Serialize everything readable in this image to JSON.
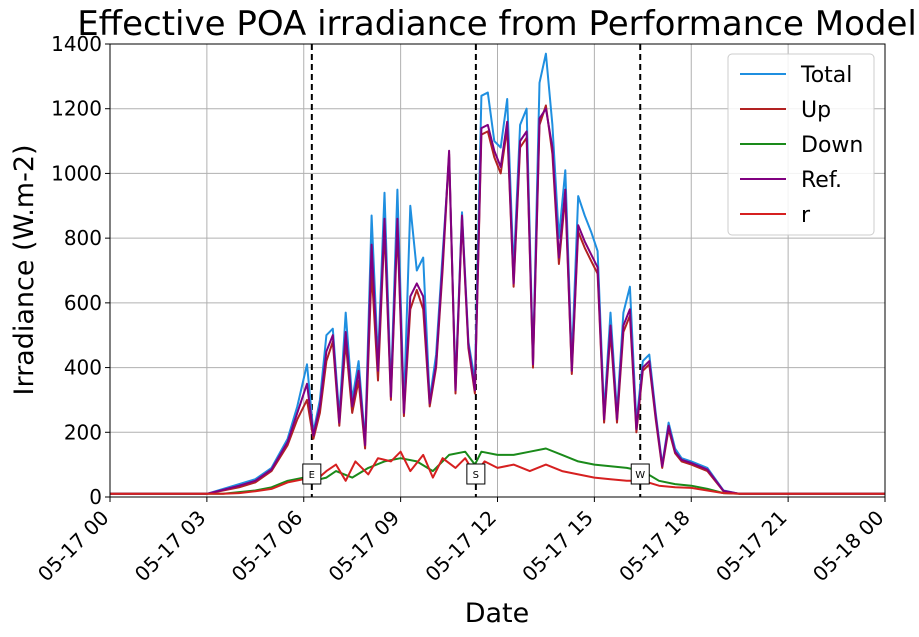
{
  "chart_data": {
    "type": "line",
    "title": "Effective POA irradiance from Performance Model",
    "xlabel": "Date",
    "ylabel": "Irradiance (W.m-2)",
    "xlim_hours": [
      0,
      24
    ],
    "ylim": [
      0,
      1400
    ],
    "grid": true,
    "legend_position": "top-right",
    "x_tick_labels": [
      "05-17 00",
      "05-17 03",
      "05-17 06",
      "05-17 09",
      "05-17 12",
      "05-17 15",
      "05-17 18",
      "05-17 21",
      "05-18 00"
    ],
    "y_ticks": [
      0,
      200,
      400,
      600,
      800,
      1000,
      1200,
      1400
    ],
    "markers": [
      {
        "label": "E",
        "hour": 6.25
      },
      {
        "label": "S",
        "hour": 11.33
      },
      {
        "label": "W",
        "hour": 16.42
      }
    ],
    "series": [
      {
        "name": "Total",
        "color": "#1f8fe0",
        "points": [
          [
            0,
            10
          ],
          [
            3,
            10
          ],
          [
            3.5,
            25
          ],
          [
            4,
            40
          ],
          [
            4.5,
            55
          ],
          [
            5,
            90
          ],
          [
            5.5,
            180
          ],
          [
            5.8,
            280
          ],
          [
            6.1,
            410
          ],
          [
            6.3,
            200
          ],
          [
            6.5,
            300
          ],
          [
            6.7,
            500
          ],
          [
            6.9,
            520
          ],
          [
            7.1,
            250
          ],
          [
            7.3,
            570
          ],
          [
            7.5,
            300
          ],
          [
            7.7,
            420
          ],
          [
            7.9,
            170
          ],
          [
            8.1,
            870
          ],
          [
            8.3,
            420
          ],
          [
            8.5,
            940
          ],
          [
            8.7,
            330
          ],
          [
            8.9,
            950
          ],
          [
            9.1,
            280
          ],
          [
            9.3,
            900
          ],
          [
            9.5,
            700
          ],
          [
            9.7,
            740
          ],
          [
            9.9,
            300
          ],
          [
            10.1,
            440
          ],
          [
            10.3,
            750
          ],
          [
            10.5,
            1050
          ],
          [
            10.7,
            350
          ],
          [
            10.9,
            880
          ],
          [
            11.1,
            480
          ],
          [
            11.3,
            360
          ],
          [
            11.5,
            1240
          ],
          [
            11.7,
            1250
          ],
          [
            11.9,
            1100
          ],
          [
            12.1,
            1080
          ],
          [
            12.3,
            1230
          ],
          [
            12.5,
            700
          ],
          [
            12.7,
            1150
          ],
          [
            12.9,
            1200
          ],
          [
            13.1,
            420
          ],
          [
            13.3,
            1280
          ],
          [
            13.5,
            1370
          ],
          [
            13.7,
            1150
          ],
          [
            13.9,
            800
          ],
          [
            14.1,
            1010
          ],
          [
            14.3,
            420
          ],
          [
            14.5,
            930
          ],
          [
            14.7,
            870
          ],
          [
            14.9,
            820
          ],
          [
            15.1,
            760
          ],
          [
            15.3,
            260
          ],
          [
            15.5,
            570
          ],
          [
            15.7,
            260
          ],
          [
            15.9,
            570
          ],
          [
            16.1,
            650
          ],
          [
            16.3,
            230
          ],
          [
            16.5,
            420
          ],
          [
            16.7,
            440
          ],
          [
            16.9,
            260
          ],
          [
            17.1,
            100
          ],
          [
            17.3,
            230
          ],
          [
            17.5,
            150
          ],
          [
            17.7,
            120
          ],
          [
            18,
            110
          ],
          [
            18.5,
            90
          ],
          [
            19,
            20
          ],
          [
            19.5,
            10
          ],
          [
            24,
            10
          ]
        ]
      },
      {
        "name": "Up",
        "color": "#b22222",
        "points": [
          [
            0,
            10
          ],
          [
            3,
            10
          ],
          [
            3.5,
            20
          ],
          [
            4,
            30
          ],
          [
            4.5,
            45
          ],
          [
            5,
            80
          ],
          [
            5.5,
            160
          ],
          [
            5.8,
            240
          ],
          [
            6.1,
            300
          ],
          [
            6.3,
            180
          ],
          [
            6.5,
            260
          ],
          [
            6.7,
            420
          ],
          [
            6.9,
            480
          ],
          [
            7.1,
            220
          ],
          [
            7.3,
            480
          ],
          [
            7.5,
            260
          ],
          [
            7.7,
            360
          ],
          [
            7.9,
            150
          ],
          [
            8.1,
            700
          ],
          [
            8.3,
            360
          ],
          [
            8.5,
            830
          ],
          [
            8.7,
            300
          ],
          [
            8.9,
            830
          ],
          [
            9.1,
            250
          ],
          [
            9.3,
            580
          ],
          [
            9.5,
            640
          ],
          [
            9.7,
            580
          ],
          [
            9.9,
            280
          ],
          [
            10.1,
            400
          ],
          [
            10.3,
            700
          ],
          [
            10.5,
            1060
          ],
          [
            10.7,
            320
          ],
          [
            10.9,
            860
          ],
          [
            11.1,
            460
          ],
          [
            11.3,
            320
          ],
          [
            11.5,
            1120
          ],
          [
            11.7,
            1130
          ],
          [
            11.9,
            1050
          ],
          [
            12.1,
            1000
          ],
          [
            12.3,
            1140
          ],
          [
            12.5,
            650
          ],
          [
            12.7,
            1080
          ],
          [
            12.9,
            1110
          ],
          [
            13.1,
            400
          ],
          [
            13.3,
            1150
          ],
          [
            13.5,
            1210
          ],
          [
            13.7,
            1060
          ],
          [
            13.9,
            720
          ],
          [
            14.1,
            930
          ],
          [
            14.3,
            380
          ],
          [
            14.5,
            820
          ],
          [
            14.7,
            770
          ],
          [
            14.9,
            730
          ],
          [
            15.1,
            690
          ],
          [
            15.3,
            230
          ],
          [
            15.5,
            510
          ],
          [
            15.7,
            230
          ],
          [
            15.9,
            510
          ],
          [
            16.1,
            560
          ],
          [
            16.3,
            200
          ],
          [
            16.5,
            390
          ],
          [
            16.7,
            410
          ],
          [
            16.9,
            240
          ],
          [
            17.1,
            90
          ],
          [
            17.3,
            210
          ],
          [
            17.5,
            135
          ],
          [
            17.7,
            110
          ],
          [
            18,
            100
          ],
          [
            18.5,
            80
          ],
          [
            19,
            18
          ],
          [
            19.5,
            10
          ],
          [
            24,
            10
          ]
        ]
      },
      {
        "name": "Down",
        "color": "#1a8a1a",
        "points": [
          [
            0,
            10
          ],
          [
            3.5,
            10
          ],
          [
            4,
            15
          ],
          [
            4.5,
            20
          ],
          [
            5,
            30
          ],
          [
            5.5,
            50
          ],
          [
            6,
            60
          ],
          [
            6.3,
            50
          ],
          [
            6.7,
            60
          ],
          [
            7,
            80
          ],
          [
            7.5,
            60
          ],
          [
            8,
            90
          ],
          [
            8.5,
            110
          ],
          [
            9,
            120
          ],
          [
            9.5,
            110
          ],
          [
            10,
            80
          ],
          [
            10.5,
            130
          ],
          [
            11,
            140
          ],
          [
            11.3,
            100
          ],
          [
            11.5,
            140
          ],
          [
            12,
            130
          ],
          [
            12.5,
            130
          ],
          [
            13,
            140
          ],
          [
            13.5,
            150
          ],
          [
            14,
            130
          ],
          [
            14.5,
            110
          ],
          [
            15,
            100
          ],
          [
            15.5,
            95
          ],
          [
            16,
            90
          ],
          [
            16.5,
            80
          ],
          [
            17,
            50
          ],
          [
            17.5,
            40
          ],
          [
            18,
            35
          ],
          [
            18.5,
            25
          ],
          [
            19,
            12
          ],
          [
            19.5,
            10
          ],
          [
            24,
            10
          ]
        ]
      },
      {
        "name": "Ref.",
        "color": "#800080",
        "points": [
          [
            0,
            10
          ],
          [
            3,
            10
          ],
          [
            3.5,
            22
          ],
          [
            4,
            35
          ],
          [
            4.5,
            50
          ],
          [
            5,
            85
          ],
          [
            5.5,
            170
          ],
          [
            5.8,
            260
          ],
          [
            6.1,
            350
          ],
          [
            6.3,
            190
          ],
          [
            6.5,
            280
          ],
          [
            6.7,
            450
          ],
          [
            6.9,
            500
          ],
          [
            7.1,
            230
          ],
          [
            7.3,
            510
          ],
          [
            7.5,
            280
          ],
          [
            7.7,
            390
          ],
          [
            7.9,
            160
          ],
          [
            8.1,
            780
          ],
          [
            8.3,
            390
          ],
          [
            8.5,
            860
          ],
          [
            8.7,
            310
          ],
          [
            8.9,
            860
          ],
          [
            9.1,
            260
          ],
          [
            9.3,
            620
          ],
          [
            9.5,
            660
          ],
          [
            9.7,
            620
          ],
          [
            9.9,
            290
          ],
          [
            10.1,
            410
          ],
          [
            10.3,
            720
          ],
          [
            10.5,
            1070
          ],
          [
            10.7,
            330
          ],
          [
            10.9,
            870
          ],
          [
            11.1,
            470
          ],
          [
            11.3,
            330
          ],
          [
            11.5,
            1140
          ],
          [
            11.7,
            1150
          ],
          [
            11.9,
            1070
          ],
          [
            12.1,
            1020
          ],
          [
            12.3,
            1160
          ],
          [
            12.5,
            660
          ],
          [
            12.7,
            1100
          ],
          [
            12.9,
            1130
          ],
          [
            13.1,
            410
          ],
          [
            13.3,
            1170
          ],
          [
            13.5,
            1200
          ],
          [
            13.7,
            1080
          ],
          [
            13.9,
            740
          ],
          [
            14.1,
            950
          ],
          [
            14.3,
            390
          ],
          [
            14.5,
            840
          ],
          [
            14.7,
            790
          ],
          [
            14.9,
            750
          ],
          [
            15.1,
            710
          ],
          [
            15.3,
            240
          ],
          [
            15.5,
            530
          ],
          [
            15.7,
            240
          ],
          [
            15.9,
            530
          ],
          [
            16.1,
            580
          ],
          [
            16.3,
            210
          ],
          [
            16.5,
            400
          ],
          [
            16.7,
            420
          ],
          [
            16.9,
            250
          ],
          [
            17.1,
            95
          ],
          [
            17.3,
            220
          ],
          [
            17.5,
            140
          ],
          [
            17.7,
            115
          ],
          [
            18,
            105
          ],
          [
            18.5,
            85
          ],
          [
            19,
            19
          ],
          [
            19.5,
            10
          ],
          [
            24,
            10
          ]
        ]
      },
      {
        "name": "r",
        "color": "#d62020",
        "points": [
          [
            0,
            10
          ],
          [
            3.5,
            10
          ],
          [
            4,
            12
          ],
          [
            4.5,
            18
          ],
          [
            5,
            25
          ],
          [
            5.5,
            45
          ],
          [
            6,
            55
          ],
          [
            6.3,
            45
          ],
          [
            6.7,
            80
          ],
          [
            7,
            100
          ],
          [
            7.3,
            50
          ],
          [
            7.6,
            110
          ],
          [
            8,
            70
          ],
          [
            8.3,
            120
          ],
          [
            8.7,
            110
          ],
          [
            9,
            140
          ],
          [
            9.3,
            80
          ],
          [
            9.7,
            130
          ],
          [
            10,
            60
          ],
          [
            10.3,
            120
          ],
          [
            10.7,
            90
          ],
          [
            11,
            120
          ],
          [
            11.3,
            70
          ],
          [
            11.6,
            110
          ],
          [
            12,
            90
          ],
          [
            12.5,
            100
          ],
          [
            13,
            80
          ],
          [
            13.5,
            100
          ],
          [
            14,
            80
          ],
          [
            14.5,
            70
          ],
          [
            15,
            60
          ],
          [
            15.5,
            55
          ],
          [
            16,
            50
          ],
          [
            16.5,
            50
          ],
          [
            17,
            35
          ],
          [
            17.5,
            30
          ],
          [
            18,
            28
          ],
          [
            18.5,
            20
          ],
          [
            19,
            12
          ],
          [
            19.5,
            10
          ],
          [
            24,
            10
          ]
        ]
      }
    ]
  }
}
